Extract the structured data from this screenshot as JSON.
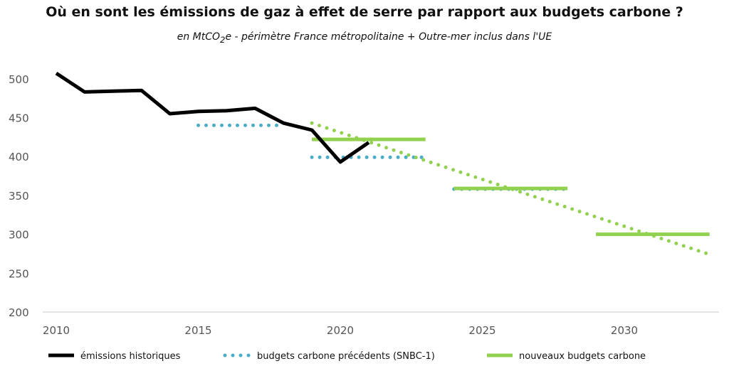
{
  "chart_data": {
    "type": "line",
    "title": "Où en sont les émissions de gaz à effet de serre par rapport aux budgets carbone ?",
    "subtitle": {
      "before": "en MtCO",
      "sub": "2",
      "after": "e - périmètre France métropolitaine + Outre-mer inclus dans l'UE"
    },
    "xlabel": "",
    "ylabel": "",
    "xlim": [
      2010,
      2033
    ],
    "ylim": [
      200,
      510
    ],
    "x_ticks": [
      2010,
      2015,
      2020,
      2025,
      2030
    ],
    "y_ticks": [
      200,
      250,
      300,
      350,
      400,
      450,
      500
    ],
    "grid": false,
    "legend_position": "bottom",
    "series": [
      {
        "name": "émissions historiques",
        "style": "solid",
        "color": "#000000",
        "points": [
          [
            2010,
            507
          ],
          [
            2011,
            483
          ],
          [
            2012,
            484
          ],
          [
            2013,
            485
          ],
          [
            2014,
            455
          ],
          [
            2015,
            458
          ],
          [
            2016,
            459
          ],
          [
            2017,
            462
          ],
          [
            2018,
            443
          ],
          [
            2019,
            434
          ],
          [
            2020,
            393
          ],
          [
            2021,
            418
          ]
        ]
      },
      {
        "name": "budgets carbone précédents (SNBC-1)",
        "style": "dotted",
        "color": "#4BACC6",
        "segments": [
          {
            "x": [
              2015,
              2018
            ],
            "value": 440
          },
          {
            "x": [
              2019,
              2023
            ],
            "value": 399
          },
          {
            "x": [
              2024,
              2028
            ],
            "value": 358
          }
        ]
      },
      {
        "name": "nouveaux budgets carbone",
        "style": "solid",
        "color": "#92D050",
        "segments": [
          {
            "x": [
              2019,
              2023
            ],
            "value": 422
          },
          {
            "x": [
              2024,
              2028
            ],
            "value": 359
          },
          {
            "x": [
              2029,
              2033
            ],
            "value": 300
          }
        ]
      },
      {
        "name": "",
        "style": "dotted",
        "color": "#92D050",
        "points": [
          [
            2019,
            443
          ],
          [
            2033,
            274
          ]
        ]
      }
    ]
  }
}
